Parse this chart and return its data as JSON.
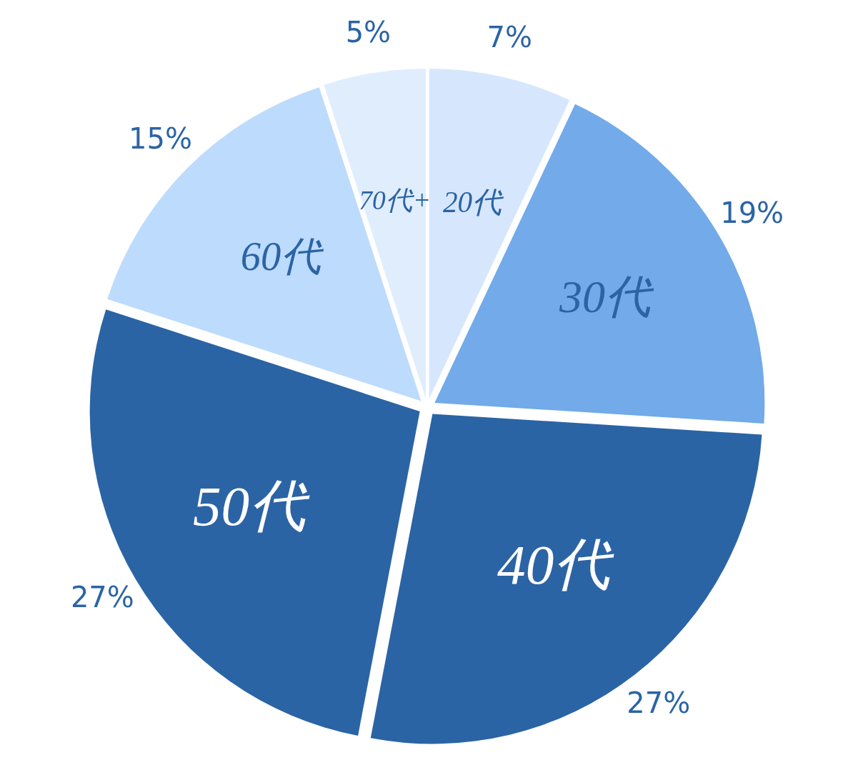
{
  "chart_data": {
    "type": "pie",
    "categories": [
      "20代",
      "30代",
      "40代",
      "50代",
      "60代",
      "70代+"
    ],
    "values": [
      7,
      19,
      27,
      27,
      15,
      5
    ],
    "colors": [
      "#d6e7fd",
      "#72aaea",
      "#2b64a5",
      "#2b64a5",
      "#bddbfd",
      "#e0edfd"
    ],
    "value_labels": [
      "7%",
      "19%",
      "27%",
      "27%",
      "15%",
      "5%"
    ]
  }
}
